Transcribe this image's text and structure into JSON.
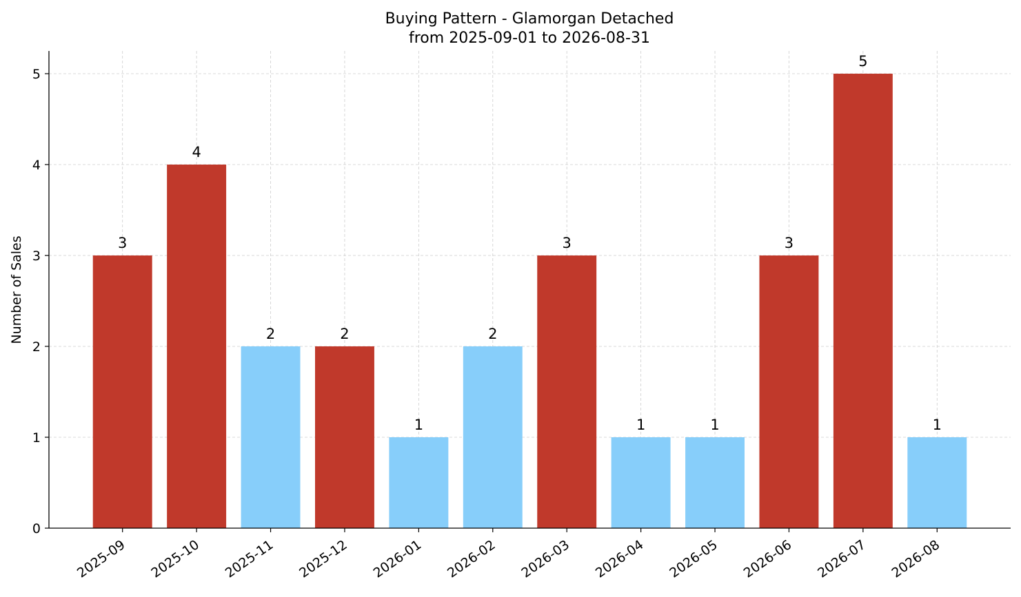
{
  "chart_data": {
    "type": "bar",
    "title": "Buying Pattern - Glamorgan Detached",
    "subtitle": "from 2025-09-01 to 2026-08-31",
    "xlabel": "",
    "ylabel": "Number of Sales",
    "ylim": [
      0,
      5.25
    ],
    "yticks": [
      "0",
      "1",
      "2",
      "3",
      "4",
      "5"
    ],
    "grid": true,
    "categories": [
      "2025-09",
      "2025-10",
      "2025-11",
      "2025-12",
      "2026-01",
      "2026-02",
      "2026-03",
      "2026-04",
      "2026-05",
      "2026-06",
      "2026-07",
      "2026-08"
    ],
    "values": [
      3,
      4,
      2,
      2,
      1,
      2,
      3,
      1,
      1,
      3,
      5,
      1
    ],
    "data_labels": [
      "3",
      "4",
      "2",
      "2",
      "1",
      "2",
      "3",
      "1",
      "1",
      "3",
      "5",
      "1"
    ],
    "bar_colors": [
      "#c0392b",
      "#c0392b",
      "#87cefa",
      "#c0392b",
      "#87cefa",
      "#87cefa",
      "#c0392b",
      "#87cefa",
      "#87cefa",
      "#c0392b",
      "#c0392b",
      "#87cefa"
    ]
  }
}
